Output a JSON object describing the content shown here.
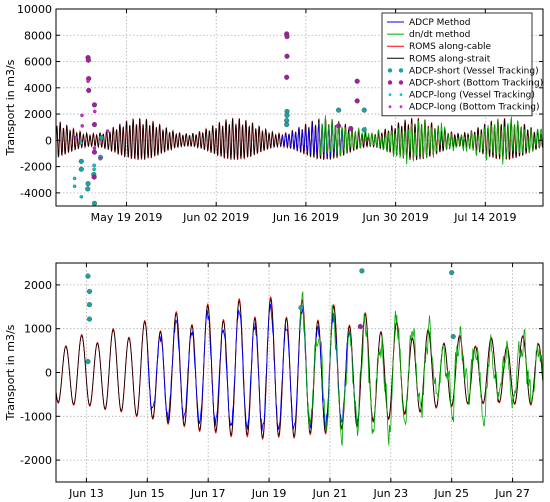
{
  "chart_data": [
    {
      "type": "line",
      "ylabel": "Transport in m3/s",
      "ylim": [
        -5000,
        10000
      ],
      "yticks": [
        -4000,
        -2000,
        0,
        2000,
        4000,
        6000,
        8000,
        10000
      ],
      "xlim": [
        "2019-05-08",
        "2019-07-23"
      ],
      "xticks": [
        {
          "date": "2019-05-19",
          "label": "May 19 2019"
        },
        {
          "date": "2019-06-02",
          "label": "Jun 02 2019"
        },
        {
          "date": "2019-06-16",
          "label": "Jun 16 2019"
        },
        {
          "date": "2019-06-30",
          "label": "Jun 30 2019"
        },
        {
          "date": "2019-07-14",
          "label": "Jul 14 2019"
        }
      ],
      "grid": true,
      "legend": {
        "placement": "top-right",
        "entries": [
          {
            "label": "ADCP Method",
            "color": "#0000ff",
            "marker": "line"
          },
          {
            "label": "dn/dt method",
            "color": "#00aa00",
            "marker": "line"
          },
          {
            "label": "ROMS along-cable",
            "color": "#ff0000",
            "marker": "line"
          },
          {
            "label": "ROMS along-strait",
            "color": "#000000",
            "marker": "line"
          },
          {
            "label": "ADCP-short (Vessel Tracking)",
            "color": "#20a0a0",
            "marker": "dot"
          },
          {
            "label": "ADCP-short (Bottom Tracking)",
            "color": "#a020a0",
            "marker": "dot"
          },
          {
            "label": "ADCP-long (Vessel Tracking)",
            "color": "#00cccc",
            "marker": "small-dot"
          },
          {
            "label": "ADCP-long (Bottom Tracking)",
            "color": "#dd22dd",
            "marker": "small-dot"
          }
        ]
      },
      "roms_model": {
        "description_of_envelope": "semidiurnal tide with spring-neap modulation",
        "amplitude_max": 1500,
        "amplitude_min": 450,
        "spring_tides": [
          "2019-05-21",
          "2019-06-05",
          "2019-06-19",
          "2019-07-03",
          "2019-07-17"
        ]
      },
      "adcp_method_range": [
        "2019-06-12",
        "2019-06-22"
      ],
      "dndt_method_range": [
        "2019-06-18",
        "2019-07-23"
      ],
      "scatter": [
        {
          "series": "ADCP-short (Vessel Tracking)",
          "points": [
            [
              "2019-05-12",
              -1600
            ],
            [
              "2019-05-12",
              -2200
            ],
            [
              "2019-05-13",
              -3300
            ],
            [
              "2019-05-13",
              -3700
            ],
            [
              "2019-05-14",
              -4800
            ],
            [
              "2019-05-14",
              -2600
            ],
            [
              "2019-05-15",
              -1300
            ],
            [
              "2019-05-15",
              200
            ],
            [
              "2019-06-13",
              2200
            ],
            [
              "2019-06-13",
              1900
            ],
            [
              "2019-06-13",
              1500
            ],
            [
              "2019-06-13",
              1200
            ],
            [
              "2019-06-21",
              2300
            ],
            [
              "2019-06-25",
              2300
            ],
            [
              "2019-06-25",
              800
            ]
          ]
        },
        {
          "series": "ADCP-short (Bottom Tracking)",
          "points": [
            [
              "2019-05-13",
              6300
            ],
            [
              "2019-05-13",
              6100
            ],
            [
              "2019-05-13",
              4700
            ],
            [
              "2019-05-13",
              3800
            ],
            [
              "2019-05-14",
              2700
            ],
            [
              "2019-05-14",
              1200
            ],
            [
              "2019-05-14",
              -900
            ],
            [
              "2019-05-14",
              -2800
            ],
            [
              "2019-06-13",
              8100
            ],
            [
              "2019-06-13",
              7900
            ],
            [
              "2019-06-13",
              6400
            ],
            [
              "2019-06-13",
              4800
            ],
            [
              "2019-06-24",
              4500
            ],
            [
              "2019-06-24",
              3000
            ],
            [
              "2019-06-21",
              1100
            ],
            [
              "2019-06-23",
              900
            ]
          ]
        },
        {
          "series": "ADCP-long (Vessel Tracking)",
          "points": [
            [
              "2019-05-11",
              -2900
            ],
            [
              "2019-05-11",
              -3500
            ],
            [
              "2019-05-12",
              -4300
            ],
            [
              "2019-05-12",
              -200
            ],
            [
              "2019-05-14",
              -1900
            ],
            [
              "2019-05-14",
              -2200
            ]
          ]
        },
        {
          "series": "ADCP-long (Bottom Tracking)",
          "points": [
            [
              "2019-05-11",
              200
            ],
            [
              "2019-05-12",
              1100
            ],
            [
              "2019-05-12",
              1900
            ],
            [
              "2019-05-13",
              4500
            ],
            [
              "2019-05-14",
              2200
            ],
            [
              "2019-05-14",
              -600
            ],
            [
              "2019-05-15",
              -1400
            ],
            [
              "2019-05-16",
              700
            ]
          ]
        }
      ]
    },
    {
      "type": "line",
      "ylabel": "Transport in m3/s",
      "ylim": [
        -2500,
        2500
      ],
      "yticks": [
        -2000,
        -1000,
        0,
        1000,
        2000
      ],
      "xlim": [
        "2019-06-12",
        "2019-06-28"
      ],
      "xticks": [
        {
          "date": "2019-06-13",
          "label": "Jun 13"
        },
        {
          "date": "2019-06-15",
          "label": "Jun 15"
        },
        {
          "date": "2019-06-17",
          "label": "Jun 17"
        },
        {
          "date": "2019-06-19",
          "label": "Jun 19"
        },
        {
          "date": "2019-06-21",
          "label": "Jun 21"
        },
        {
          "date": "2019-06-23",
          "label": "Jun 23"
        },
        {
          "date": "2019-06-25",
          "label": "Jun 25"
        },
        {
          "date": "2019-06-27",
          "label": "Jun 27"
        }
      ],
      "grid": true,
      "roms_model": {
        "amplitude_max": 1500,
        "amplitude_min": 700,
        "spring_tides": [
          "2019-06-19"
        ]
      },
      "adcp_method_range": [
        "2019-06-15",
        "2019-06-22"
      ],
      "dndt_method_range": [
        "2019-06-20",
        "2019-06-28"
      ],
      "scatter": [
        {
          "series": "ADCP-short (Vessel Tracking)",
          "points": [
            [
              "2019-06-13",
              2200
            ],
            [
              "2019-06-13",
              1850
            ],
            [
              "2019-06-13",
              1550
            ],
            [
              "2019-06-13",
              1220
            ],
            [
              "2019-06-13",
              250
            ],
            [
              "2019-06-20",
              1480
            ],
            [
              "2019-06-22",
              2320
            ],
            [
              "2019-06-25",
              2280
            ],
            [
              "2019-06-25",
              820
            ]
          ]
        },
        {
          "series": "ADCP-short (Bottom Tracking)",
          "points": [
            [
              "2019-06-22",
              1050
            ]
          ]
        }
      ]
    }
  ]
}
